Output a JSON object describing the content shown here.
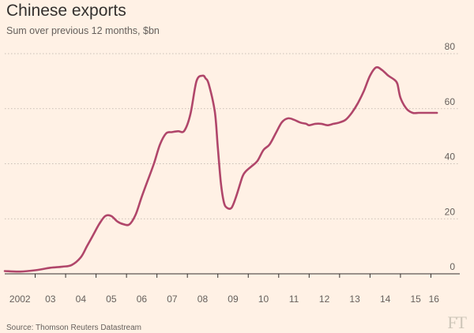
{
  "header": {
    "title": "Chinese exports",
    "subtitle": "Sum over previous 12 months, $bn"
  },
  "footer": {
    "source": "Source: Thomson Reuters Datastream",
    "logo": "FT"
  },
  "colors": {
    "background": "#fff1e5",
    "line": "#b0466a",
    "grid": "#b9b0a6",
    "text": "#66605c"
  },
  "chart_data": {
    "type": "line",
    "title": "Chinese exports",
    "subtitle": "Sum over previous 12 months, $bn",
    "xlabel": "",
    "ylabel": "",
    "xlim": [
      2002.0,
      2016.3
    ],
    "ylim": [
      0,
      80
    ],
    "yticks": [
      0,
      20,
      40,
      60,
      80
    ],
    "y_axis_side": "right",
    "grid": "horizontal dotted",
    "x_tick_labels": [
      {
        "x": 2002.5,
        "label": "2002"
      },
      {
        "x": 2003.5,
        "label": "03"
      },
      {
        "x": 2004.5,
        "label": "04"
      },
      {
        "x": 2005.5,
        "label": "05"
      },
      {
        "x": 2006.5,
        "label": "06"
      },
      {
        "x": 2007.5,
        "label": "07"
      },
      {
        "x": 2008.5,
        "label": "08"
      },
      {
        "x": 2009.5,
        "label": "09"
      },
      {
        "x": 2010.5,
        "label": "10"
      },
      {
        "x": 2011.5,
        "label": "11"
      },
      {
        "x": 2012.5,
        "label": "12"
      },
      {
        "x": 2013.5,
        "label": "13"
      },
      {
        "x": 2014.5,
        "label": "14"
      },
      {
        "x": 2015.5,
        "label": "15"
      },
      {
        "x": 2016.1,
        "label": "16"
      }
    ],
    "series": [
      {
        "x": [
          2002.0,
          2002.5,
          2003.0,
          2003.5,
          2003.9,
          2004.2,
          2004.5,
          2004.7,
          2004.9,
          2005.1,
          2005.3,
          2005.5,
          2005.7,
          2005.9,
          2006.1,
          2006.3,
          2006.5,
          2006.7,
          2006.9,
          2007.1,
          2007.3,
          2007.5,
          2007.7,
          2007.9,
          2008.1,
          2008.3,
          2008.5,
          2008.6,
          2008.7,
          2008.9,
          2009.0,
          2009.1,
          2009.2,
          2009.3,
          2009.45,
          2009.6,
          2009.8,
          2009.9,
          2010.1,
          2010.3,
          2010.5,
          2010.7,
          2010.9,
          2011.1,
          2011.3,
          2011.5,
          2011.7,
          2011.9,
          2012.0,
          2012.2,
          2012.4,
          2012.6,
          2012.8,
          2013.0,
          2013.2,
          2013.4,
          2013.6,
          2013.8,
          2014.0,
          2014.2,
          2014.4,
          2014.6,
          2014.8,
          2014.9,
          2015.0,
          2015.2,
          2015.4,
          2015.6,
          2015.8,
          2016.0,
          2016.2
        ],
        "y": [
          1.0,
          0.8,
          1.3,
          2.2,
          2.6,
          3.2,
          6.0,
          10.0,
          14.0,
          18.0,
          21.0,
          21.0,
          19.0,
          18.0,
          18.0,
          21.5,
          28.0,
          34.0,
          40.0,
          47.0,
          51.0,
          51.5,
          51.8,
          52.0,
          58.0,
          70.0,
          72.0,
          71.0,
          69.0,
          59.0,
          46.0,
          33.0,
          26.0,
          24.0,
          24.0,
          28.0,
          35.0,
          37.0,
          39.0,
          41.0,
          45.0,
          47.0,
          51.0,
          55.0,
          56.5,
          56.0,
          55.0,
          54.5,
          54.0,
          54.5,
          54.5,
          54.0,
          54.5,
          55.0,
          56.0,
          58.5,
          62.0,
          66.5,
          72.0,
          75.0,
          74.0,
          72.0,
          70.5,
          69.0,
          64.0,
          60.0,
          58.5,
          58.5,
          58.5,
          58.5,
          58.5
        ]
      }
    ]
  }
}
